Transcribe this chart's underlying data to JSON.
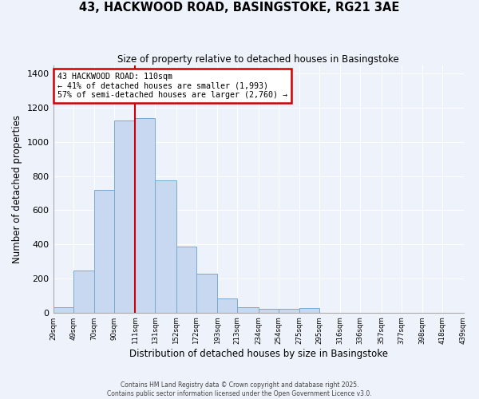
{
  "title": "43, HACKWOOD ROAD, BASINGSTOKE, RG21 3AE",
  "subtitle": "Size of property relative to detached houses in Basingstoke",
  "xlabel": "Distribution of detached houses by size in Basingstoke",
  "ylabel": "Number of detached properties",
  "bar_color": "#c8d8f0",
  "bar_edge_color": "#7aaad0",
  "background_color": "#eef2fb",
  "grid_color": "#ffffff",
  "annotation_box_color": "#cc0000",
  "annotation_line_color": "#cc0000",
  "bin_edges": [
    29,
    49,
    70,
    90,
    111,
    131,
    152,
    172,
    193,
    213,
    234,
    254,
    275,
    295,
    316,
    336,
    357,
    377,
    398,
    418,
    439
  ],
  "counts": [
    30,
    245,
    720,
    1125,
    1140,
    775,
    385,
    230,
    85,
    30,
    20,
    20,
    25,
    0,
    0,
    0,
    0,
    0,
    0,
    0
  ],
  "tick_labels": [
    "29sqm",
    "49sqm",
    "70sqm",
    "90sqm",
    "111sqm",
    "131sqm",
    "152sqm",
    "172sqm",
    "193sqm",
    "213sqm",
    "234sqm",
    "254sqm",
    "275sqm",
    "295sqm",
    "316sqm",
    "336sqm",
    "357sqm",
    "377sqm",
    "398sqm",
    "418sqm",
    "439sqm"
  ],
  "vline_x": 111,
  "annotation_title": "43 HACKWOOD ROAD: 110sqm",
  "annotation_line1": "← 41% of detached houses are smaller (1,993)",
  "annotation_line2": "57% of semi-detached houses are larger (2,760) →",
  "ylim": [
    0,
    1450
  ],
  "yticks": [
    0,
    200,
    400,
    600,
    800,
    1000,
    1200,
    1400
  ],
  "footnote1": "Contains HM Land Registry data © Crown copyright and database right 2025.",
  "footnote2": "Contains public sector information licensed under the Open Government Licence v3.0."
}
